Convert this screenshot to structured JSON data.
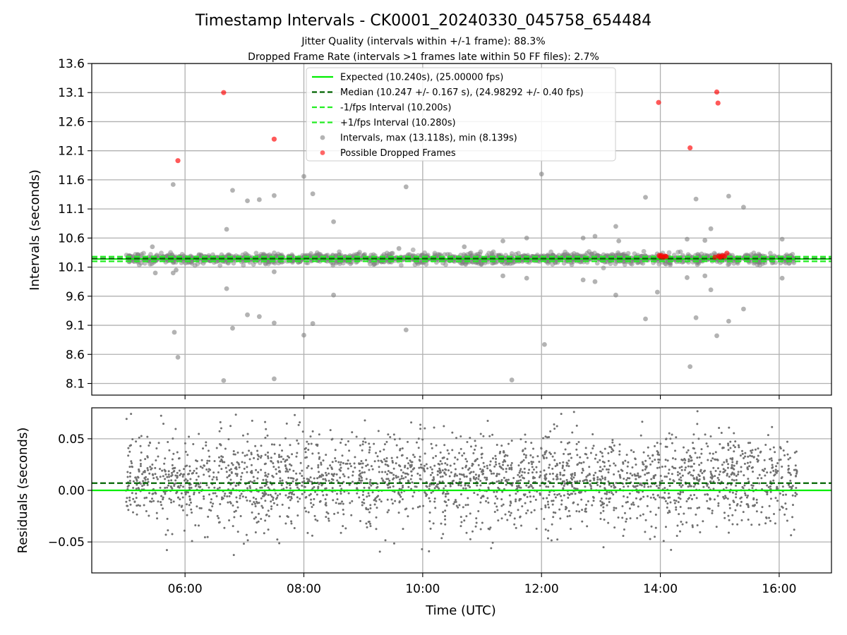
{
  "chart_data": {
    "title": "Timestamp Intervals - CK0001_20240330_045758_654484",
    "subtitle_lines": [
      "Jitter Quality (intervals within +/-1 frame): 88.3%",
      "Dropped Frame Rate (intervals >1 frames late within 50 FF files): 2.7%"
    ],
    "xlabel": "Time (UTC)",
    "x_ticks": [
      "06:00",
      "08:00",
      "10:00",
      "12:00",
      "14:00",
      "16:00"
    ],
    "xlim_hours": [
      4.43,
      16.88
    ],
    "grid": true,
    "panels": [
      {
        "type": "scatter",
        "ylabel": "Intervals (seconds)",
        "ylim": [
          7.9,
          13.6
        ],
        "y_ticks": [
          "8.1",
          "8.6",
          "9.1",
          "9.6",
          "10.1",
          "10.6",
          "11.1",
          "11.6",
          "12.1",
          "12.6",
          "13.1",
          "13.6"
        ],
        "legend_position": "top-center",
        "reference_lines": [
          {
            "name": "Expected (10.240s), (25.00000 fps)",
            "y": 10.24,
            "color": "#00ee00",
            "style": "solid"
          },
          {
            "name": "Median (10.247 +/- 0.167 s), (24.98292 +/- 0.40 fps)",
            "y": 10.247,
            "color": "#006400",
            "style": "dashed"
          },
          {
            "name": "-1/fps Interval (10.200s)",
            "y": 10.2,
            "color": "#22ee22",
            "style": "dashed"
          },
          {
            "name": "+1/fps Interval (10.280s)",
            "y": 10.28,
            "color": "#22ee22",
            "style": "dashed"
          }
        ],
        "series": [
          {
            "name": "Intervals, max (13.118s), min (8.139s)",
            "color": "#808080",
            "band": {
              "x_start": 5.0,
              "x_end": 16.25,
              "center": 10.247,
              "spread": 0.08
            },
            "outliers": [
              [
                5.45,
                10.45
              ],
              [
                5.5,
                10.0
              ],
              [
                5.8,
                11.52
              ],
              [
                5.8,
                10.0
              ],
              [
                5.82,
                8.98
              ],
              [
                5.88,
                8.55
              ],
              [
                5.85,
                10.05
              ],
              [
                6.65,
                8.15
              ],
              [
                6.7,
                10.75
              ],
              [
                6.7,
                9.73
              ],
              [
                6.8,
                11.42
              ],
              [
                6.8,
                9.05
              ],
              [
                7.05,
                11.24
              ],
              [
                7.05,
                9.28
              ],
              [
                7.25,
                11.26
              ],
              [
                7.25,
                9.25
              ],
              [
                7.5,
                11.33
              ],
              [
                7.5,
                9.14
              ],
              [
                7.5,
                8.18
              ],
              [
                7.5,
                10.02
              ],
              [
                8.0,
                11.66
              ],
              [
                8.0,
                8.93
              ],
              [
                8.15,
                11.36
              ],
              [
                8.15,
                9.13
              ],
              [
                8.5,
                10.88
              ],
              [
                8.5,
                9.62
              ],
              [
                9.72,
                11.48
              ],
              [
                9.72,
                9.02
              ],
              [
                9.6,
                10.42
              ],
              [
                10.7,
                10.45
              ],
              [
                11.35,
                10.55
              ],
              [
                11.35,
                9.95
              ],
              [
                11.5,
                8.16
              ],
              [
                11.75,
                10.6
              ],
              [
                11.75,
                9.91
              ],
              [
                12.0,
                11.7
              ],
              [
                12.05,
                8.77
              ],
              [
                12.7,
                10.6
              ],
              [
                12.7,
                9.88
              ],
              [
                12.9,
                10.63
              ],
              [
                12.9,
                9.85
              ],
              [
                13.25,
                10.8
              ],
              [
                13.25,
                9.62
              ],
              [
                13.3,
                10.55
              ],
              [
                13.75,
                11.3
              ],
              [
                13.75,
                9.21
              ],
              [
                13.95,
                9.67
              ],
              [
                14.45,
                10.58
              ],
              [
                14.45,
                9.92
              ],
              [
                14.5,
                8.39
              ],
              [
                14.6,
                11.27
              ],
              [
                14.6,
                9.23
              ],
              [
                14.75,
                10.56
              ],
              [
                14.75,
                9.95
              ],
              [
                14.85,
                10.76
              ],
              [
                14.85,
                9.71
              ],
              [
                14.95,
                8.92
              ],
              [
                15.15,
                11.32
              ],
              [
                15.15,
                9.17
              ],
              [
                15.4,
                11.13
              ],
              [
                15.4,
                9.38
              ],
              [
                16.05,
                10.58
              ],
              [
                16.05,
                9.91
              ]
            ]
          },
          {
            "name": "Possible Dropped Frames",
            "color": "#ff0000",
            "points": [
              [
                5.88,
                11.93
              ],
              [
                6.65,
                13.1
              ],
              [
                7.5,
                12.3
              ],
              [
                13.97,
                12.93
              ],
              [
                14.5,
                12.15
              ],
              [
                14.95,
                13.11
              ],
              [
                14.97,
                12.92
              ],
              [
                13.98,
                10.3
              ],
              [
                14.0,
                10.28
              ],
              [
                14.02,
                10.3
              ],
              [
                14.05,
                10.27
              ],
              [
                14.08,
                10.29
              ],
              [
                14.1,
                10.28
              ],
              [
                14.98,
                10.29
              ],
              [
                15.0,
                10.27
              ],
              [
                15.02,
                10.28
              ],
              [
                15.05,
                10.3
              ],
              [
                15.08,
                10.28
              ],
              [
                15.12,
                10.34
              ],
              [
                14.92,
                10.27
              ]
            ]
          }
        ]
      },
      {
        "type": "scatter",
        "ylabel": "Residuals (seconds)",
        "ylim": [
          -0.08,
          0.08
        ],
        "y_ticks": [
          "0.05",
          "0.00",
          "−0.05"
        ],
        "y_tick_values": [
          0.05,
          0.0,
          -0.05
        ],
        "reference_lines": [
          {
            "y": 0.0,
            "color": "#00ee00",
            "style": "solid"
          },
          {
            "y": 0.007,
            "color": "#006400",
            "style": "dashed"
          }
        ],
        "series": [
          {
            "color": "#707070",
            "band": {
              "x_start": 5.0,
              "x_end": 16.3,
              "center": 0.01,
              "spread": 0.022,
              "count": 2600
            }
          }
        ]
      }
    ]
  }
}
